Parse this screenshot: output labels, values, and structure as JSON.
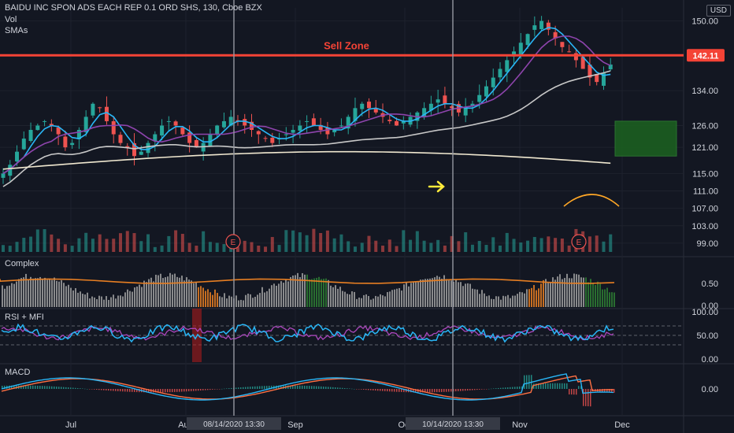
{
  "header": {
    "symbol_line": "BAIDU INC SPON ADS EACH REP 0.1 ORD SHS, 130, Cboe BZX",
    "vol_label": "Vol",
    "smas_label": "SMAs",
    "currency": "USD"
  },
  "annotations": {
    "sell_zone": "Sell Zone",
    "sell_price": "142.11",
    "earnings_marker": "E"
  },
  "panes": {
    "complex": "Complex",
    "rsi": "RSI + MFI",
    "macd": "MACD"
  },
  "colors": {
    "background": "#131722",
    "up": "#ef5350",
    "down": "#26a69a",
    "sell_line": "#f44336",
    "sma_fast": "#29b6f6",
    "sma_mid": "#8e44ad",
    "sma_slow": "#c8c8c8",
    "sma_long": "#f0e8d0",
    "box": "#1b5e20",
    "rsi": "#29b6f6",
    "mfi": "#ab47bc",
    "macd": "#29b6f6",
    "signal": "#ff7043",
    "complex_line": "#e67e22"
  },
  "chart_data": {
    "type": "candlestick",
    "x_labels": [
      "Jul",
      "Aug",
      "Sep",
      "Oct",
      "Nov",
      "Dec"
    ],
    "crosshair_labels": [
      "08/14/2020 13:30",
      "10/14/2020 13:30"
    ],
    "price_ticks": [
      "150.00",
      "134.00",
      "126.00",
      "121.00",
      "115.00",
      "111.00",
      "107.00",
      "103.00",
      "99.00"
    ],
    "complex_ticks": [
      "0.50",
      "0.00"
    ],
    "rsi_ticks": [
      "100.00",
      "50.00",
      "0.00"
    ],
    "macd_ticks": [
      "0.00"
    ],
    "sell_zone_price": 142.11,
    "box_range": [
      119,
      127
    ],
    "close_series": [
      115,
      117,
      120,
      123,
      125,
      126,
      127,
      126,
      124,
      121,
      122,
      125,
      128,
      131,
      130,
      127,
      124,
      122,
      121,
      119,
      120,
      122,
      124,
      126,
      127,
      126,
      124,
      122,
      121,
      122,
      124,
      126,
      127,
      128,
      127,
      126,
      125,
      124,
      123,
      122,
      123,
      124,
      125,
      126,
      127,
      126,
      125,
      124,
      125,
      126,
      128,
      130,
      131,
      130,
      129,
      128,
      127,
      126,
      127,
      128,
      129,
      130,
      131,
      132,
      131,
      130,
      129,
      130,
      131,
      133,
      135,
      137,
      139,
      141,
      143,
      145,
      147,
      149,
      150,
      148,
      146,
      144,
      143,
      141,
      139,
      137,
      136,
      138,
      140
    ]
  }
}
